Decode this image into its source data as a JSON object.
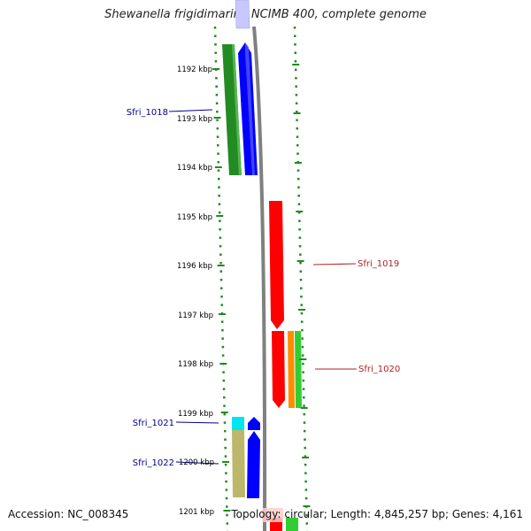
{
  "title": "Shewanella frigidimarina NCIMB 400, complete genome",
  "footer": {
    "accession": "Accession: NC_008345",
    "summary": "Topology: circular; Length: 4,845,257 bp; Genes: 4,161"
  },
  "ticks": [
    "1192 kbp",
    "1193 kbp",
    "1194 kbp",
    "1195 kbp",
    "1196 kbp",
    "1197 kbp",
    "1198 kbp",
    "1199 kbp",
    "1200 kbp",
    "1201 kbp"
  ],
  "gene_labels": [
    "Sfri_1018",
    "Sfri_1019",
    "Sfri_1020",
    "Sfri_1021",
    "Sfri_1022"
  ],
  "colors": {
    "plus_strand": "#0000ff",
    "minus_strand": "#ff0000",
    "cds_green": "#228b22",
    "orange": "#ff8c00",
    "light_green": "#32cd32",
    "cyan": "#00e5ee",
    "khaki": "#bdb76b",
    "lavender": "#c8c8ff",
    "backbone": "#808080",
    "ruler": "#228b22",
    "label_left": "#00008b",
    "label_right": "#b22222"
  }
}
